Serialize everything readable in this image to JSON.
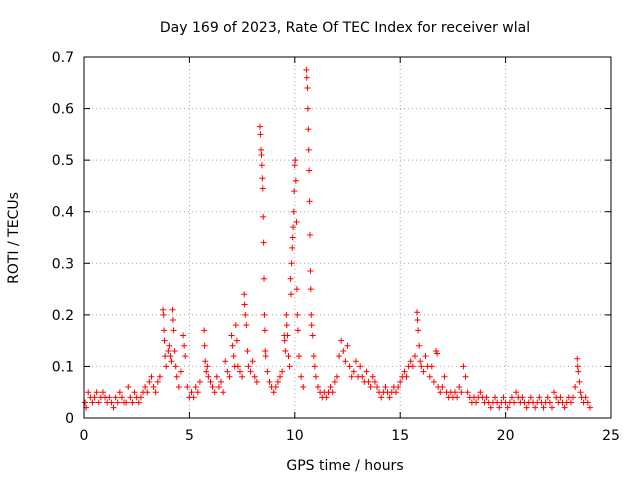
{
  "chart_data": {
    "type": "scatter",
    "title": "Day 169 of 2023, Rate Of TEC Index for receiver wlal",
    "xlabel": "GPS time / hours",
    "ylabel": "ROTI / TECUs",
    "xlim": [
      0,
      25
    ],
    "ylim": [
      0,
      0.7
    ],
    "xticks": [
      0,
      5,
      10,
      15,
      20,
      25
    ],
    "yticks": [
      0,
      0.1,
      0.2,
      0.3,
      0.4,
      0.5,
      0.6,
      0.7
    ],
    "xtick_labels": [
      "0",
      "5",
      "10",
      "15",
      "20",
      "25"
    ],
    "ytick_labels": [
      "0",
      "0.1",
      "0.2",
      "0.3",
      "0.4",
      "0.5",
      "0.6",
      "0.7"
    ],
    "grid": true,
    "marker": "+",
    "color": "#ff0000",
    "series": [
      {
        "name": "ROTI",
        "points": [
          [
            0.05,
            0.03
          ],
          [
            0.1,
            0.02
          ],
          [
            0.2,
            0.05
          ],
          [
            0.3,
            0.04
          ],
          [
            0.4,
            0.03
          ],
          [
            0.5,
            0.04
          ],
          [
            0.6,
            0.05
          ],
          [
            0.7,
            0.03
          ],
          [
            0.8,
            0.04
          ],
          [
            0.9,
            0.05
          ],
          [
            1.0,
            0.04
          ],
          [
            1.1,
            0.03
          ],
          [
            1.2,
            0.04
          ],
          [
            1.3,
            0.03
          ],
          [
            1.4,
            0.02
          ],
          [
            1.5,
            0.04
          ],
          [
            1.6,
            0.03
          ],
          [
            1.7,
            0.05
          ],
          [
            1.8,
            0.04
          ],
          [
            1.9,
            0.03
          ],
          [
            2.0,
            0.03
          ],
          [
            2.1,
            0.06
          ],
          [
            2.2,
            0.04
          ],
          [
            2.3,
            0.03
          ],
          [
            2.4,
            0.05
          ],
          [
            2.5,
            0.04
          ],
          [
            2.6,
            0.03
          ],
          [
            2.7,
            0.04
          ],
          [
            2.8,
            0.05
          ],
          [
            2.9,
            0.06
          ],
          [
            3.0,
            0.05
          ],
          [
            3.1,
            0.07
          ],
          [
            3.2,
            0.08
          ],
          [
            3.3,
            0.06
          ],
          [
            3.4,
            0.05
          ],
          [
            3.5,
            0.07
          ],
          [
            3.6,
            0.08
          ],
          [
            3.75,
            0.21
          ],
          [
            3.78,
            0.2
          ],
          [
            3.8,
            0.17
          ],
          [
            3.82,
            0.15
          ],
          [
            3.85,
            0.12
          ],
          [
            3.9,
            0.1
          ],
          [
            4.0,
            0.13
          ],
          [
            4.05,
            0.14
          ],
          [
            4.1,
            0.12
          ],
          [
            4.15,
            0.11
          ],
          [
            4.2,
            0.21
          ],
          [
            4.22,
            0.19
          ],
          [
            4.25,
            0.17
          ],
          [
            4.3,
            0.13
          ],
          [
            4.35,
            0.1
          ],
          [
            4.4,
            0.08
          ],
          [
            4.5,
            0.06
          ],
          [
            4.6,
            0.09
          ],
          [
            4.7,
            0.16
          ],
          [
            4.75,
            0.14
          ],
          [
            4.8,
            0.12
          ],
          [
            4.9,
            0.06
          ],
          [
            5.0,
            0.04
          ],
          [
            5.1,
            0.05
          ],
          [
            5.2,
            0.04
          ],
          [
            5.3,
            0.06
          ],
          [
            5.4,
            0.05
          ],
          [
            5.5,
            0.07
          ],
          [
            5.7,
            0.17
          ],
          [
            5.72,
            0.14
          ],
          [
            5.75,
            0.11
          ],
          [
            5.8,
            0.09
          ],
          [
            5.85,
            0.1
          ],
          [
            5.9,
            0.08
          ],
          [
            6.0,
            0.07
          ],
          [
            6.1,
            0.06
          ],
          [
            6.2,
            0.05
          ],
          [
            6.3,
            0.08
          ],
          [
            6.4,
            0.06
          ],
          [
            6.5,
            0.07
          ],
          [
            6.6,
            0.05
          ],
          [
            6.7,
            0.11
          ],
          [
            6.8,
            0.09
          ],
          [
            6.9,
            0.08
          ],
          [
            7.0,
            0.16
          ],
          [
            7.05,
            0.14
          ],
          [
            7.1,
            0.12
          ],
          [
            7.15,
            0.1
          ],
          [
            7.2,
            0.18
          ],
          [
            7.25,
            0.15
          ],
          [
            7.3,
            0.1
          ],
          [
            7.4,
            0.09
          ],
          [
            7.5,
            0.08
          ],
          [
            7.6,
            0.24
          ],
          [
            7.62,
            0.22
          ],
          [
            7.65,
            0.2
          ],
          [
            7.7,
            0.18
          ],
          [
            7.75,
            0.13
          ],
          [
            7.8,
            0.1
          ],
          [
            7.9,
            0.09
          ],
          [
            8.0,
            0.11
          ],
          [
            8.1,
            0.08
          ],
          [
            8.2,
            0.07
          ],
          [
            8.35,
            0.565
          ],
          [
            8.37,
            0.55
          ],
          [
            8.4,
            0.52
          ],
          [
            8.42,
            0.51
          ],
          [
            8.44,
            0.49
          ],
          [
            8.46,
            0.465
          ],
          [
            8.48,
            0.445
          ],
          [
            8.5,
            0.39
          ],
          [
            8.52,
            0.34
          ],
          [
            8.54,
            0.27
          ],
          [
            8.56,
            0.2
          ],
          [
            8.58,
            0.17
          ],
          [
            8.6,
            0.13
          ],
          [
            8.62,
            0.12
          ],
          [
            8.7,
            0.09
          ],
          [
            8.8,
            0.07
          ],
          [
            8.9,
            0.06
          ],
          [
            9.0,
            0.05
          ],
          [
            9.1,
            0.06
          ],
          [
            9.2,
            0.07
          ],
          [
            9.3,
            0.08
          ],
          [
            9.4,
            0.09
          ],
          [
            9.5,
            0.16
          ],
          [
            9.52,
            0.15
          ],
          [
            9.55,
            0.13
          ],
          [
            9.6,
            0.2
          ],
          [
            9.62,
            0.18
          ],
          [
            9.65,
            0.16
          ],
          [
            9.7,
            0.12
          ],
          [
            9.75,
            0.1
          ],
          [
            9.8,
            0.27
          ],
          [
            9.82,
            0.24
          ],
          [
            9.85,
            0.3
          ],
          [
            9.88,
            0.33
          ],
          [
            9.9,
            0.35
          ],
          [
            9.92,
            0.37
          ],
          [
            9.95,
            0.4
          ],
          [
            9.97,
            0.44
          ],
          [
            10.0,
            0.49
          ],
          [
            10.02,
            0.5
          ],
          [
            10.05,
            0.46
          ],
          [
            10.08,
            0.38
          ],
          [
            10.1,
            0.25
          ],
          [
            10.12,
            0.2
          ],
          [
            10.15,
            0.17
          ],
          [
            10.2,
            0.12
          ],
          [
            10.3,
            0.08
          ],
          [
            10.4,
            0.06
          ],
          [
            10.55,
            0.675
          ],
          [
            10.57,
            0.66
          ],
          [
            10.6,
            0.64
          ],
          [
            10.62,
            0.6
          ],
          [
            10.64,
            0.56
          ],
          [
            10.66,
            0.52
          ],
          [
            10.68,
            0.48
          ],
          [
            10.7,
            0.42
          ],
          [
            10.72,
            0.355
          ],
          [
            10.74,
            0.285
          ],
          [
            10.76,
            0.25
          ],
          [
            10.78,
            0.2
          ],
          [
            10.8,
            0.18
          ],
          [
            10.85,
            0.16
          ],
          [
            10.9,
            0.12
          ],
          [
            10.95,
            0.1
          ],
          [
            11.0,
            0.08
          ],
          [
            11.1,
            0.06
          ],
          [
            11.2,
            0.05
          ],
          [
            11.3,
            0.04
          ],
          [
            11.4,
            0.05
          ],
          [
            11.5,
            0.04
          ],
          [
            11.6,
            0.05
          ],
          [
            11.7,
            0.06
          ],
          [
            11.8,
            0.05
          ],
          [
            11.9,
            0.07
          ],
          [
            12.0,
            0.08
          ],
          [
            12.1,
            0.12
          ],
          [
            12.2,
            0.15
          ],
          [
            12.3,
            0.13
          ],
          [
            12.4,
            0.11
          ],
          [
            12.5,
            0.14
          ],
          [
            12.6,
            0.1
          ],
          [
            12.7,
            0.08
          ],
          [
            12.8,
            0.09
          ],
          [
            12.9,
            0.11
          ],
          [
            13.0,
            0.08
          ],
          [
            13.1,
            0.1
          ],
          [
            13.2,
            0.08
          ],
          [
            13.3,
            0.07
          ],
          [
            13.4,
            0.09
          ],
          [
            13.5,
            0.07
          ],
          [
            13.6,
            0.06
          ],
          [
            13.7,
            0.08
          ],
          [
            13.8,
            0.07
          ],
          [
            13.9,
            0.06
          ],
          [
            14.0,
            0.05
          ],
          [
            14.1,
            0.04
          ],
          [
            14.2,
            0.05
          ],
          [
            14.3,
            0.06
          ],
          [
            14.4,
            0.05
          ],
          [
            14.5,
            0.04
          ],
          [
            14.6,
            0.05
          ],
          [
            14.7,
            0.06
          ],
          [
            14.8,
            0.05
          ],
          [
            14.9,
            0.06
          ],
          [
            15.0,
            0.07
          ],
          [
            15.1,
            0.08
          ],
          [
            15.2,
            0.09
          ],
          [
            15.3,
            0.08
          ],
          [
            15.4,
            0.1
          ],
          [
            15.5,
            0.11
          ],
          [
            15.6,
            0.1
          ],
          [
            15.7,
            0.12
          ],
          [
            15.8,
            0.205
          ],
          [
            15.82,
            0.19
          ],
          [
            15.85,
            0.17
          ],
          [
            15.9,
            0.14
          ],
          [
            15.95,
            0.11
          ],
          [
            16.0,
            0.1
          ],
          [
            16.1,
            0.09
          ],
          [
            16.2,
            0.12
          ],
          [
            16.3,
            0.1
          ],
          [
            16.4,
            0.08
          ],
          [
            16.5,
            0.1
          ],
          [
            16.6,
            0.07
          ],
          [
            16.7,
            0.13
          ],
          [
            16.75,
            0.125
          ],
          [
            16.8,
            0.06
          ],
          [
            16.9,
            0.05
          ],
          [
            17.0,
            0.06
          ],
          [
            17.1,
            0.08
          ],
          [
            17.2,
            0.05
          ],
          [
            17.3,
            0.04
          ],
          [
            17.4,
            0.05
          ],
          [
            17.5,
            0.04
          ],
          [
            17.6,
            0.05
          ],
          [
            17.7,
            0.04
          ],
          [
            17.8,
            0.06
          ],
          [
            17.9,
            0.05
          ],
          [
            18.0,
            0.1
          ],
          [
            18.1,
            0.08
          ],
          [
            18.2,
            0.05
          ],
          [
            18.3,
            0.04
          ],
          [
            18.4,
            0.03
          ],
          [
            18.5,
            0.04
          ],
          [
            18.6,
            0.03
          ],
          [
            18.7,
            0.04
          ],
          [
            18.8,
            0.05
          ],
          [
            18.9,
            0.04
          ],
          [
            19.0,
            0.03
          ],
          [
            19.1,
            0.04
          ],
          [
            19.2,
            0.03
          ],
          [
            19.3,
            0.02
          ],
          [
            19.4,
            0.03
          ],
          [
            19.5,
            0.04
          ],
          [
            19.6,
            0.03
          ],
          [
            19.7,
            0.02
          ],
          [
            19.8,
            0.03
          ],
          [
            19.9,
            0.04
          ],
          [
            20.0,
            0.03
          ],
          [
            20.1,
            0.02
          ],
          [
            20.2,
            0.03
          ],
          [
            20.3,
            0.04
          ],
          [
            20.4,
            0.03
          ],
          [
            20.5,
            0.05
          ],
          [
            20.6,
            0.04
          ],
          [
            20.7,
            0.03
          ],
          [
            20.8,
            0.04
          ],
          [
            20.9,
            0.03
          ],
          [
            21.0,
            0.02
          ],
          [
            21.1,
            0.03
          ],
          [
            21.2,
            0.04
          ],
          [
            21.3,
            0.03
          ],
          [
            21.4,
            0.02
          ],
          [
            21.5,
            0.03
          ],
          [
            21.6,
            0.04
          ],
          [
            21.7,
            0.03
          ],
          [
            21.8,
            0.02
          ],
          [
            21.9,
            0.03
          ],
          [
            22.0,
            0.04
          ],
          [
            22.1,
            0.03
          ],
          [
            22.2,
            0.02
          ],
          [
            22.3,
            0.05
          ],
          [
            22.4,
            0.04
          ],
          [
            22.5,
            0.03
          ],
          [
            22.6,
            0.04
          ],
          [
            22.7,
            0.03
          ],
          [
            22.8,
            0.02
          ],
          [
            22.9,
            0.03
          ],
          [
            23.0,
            0.04
          ],
          [
            23.1,
            0.03
          ],
          [
            23.2,
            0.04
          ],
          [
            23.3,
            0.06
          ],
          [
            23.4,
            0.115
          ],
          [
            23.42,
            0.1
          ],
          [
            23.45,
            0.09
          ],
          [
            23.5,
            0.07
          ],
          [
            23.55,
            0.05
          ],
          [
            23.6,
            0.04
          ],
          [
            23.7,
            0.03
          ],
          [
            23.8,
            0.04
          ],
          [
            23.9,
            0.03
          ],
          [
            24.0,
            0.02
          ]
        ]
      }
    ]
  }
}
